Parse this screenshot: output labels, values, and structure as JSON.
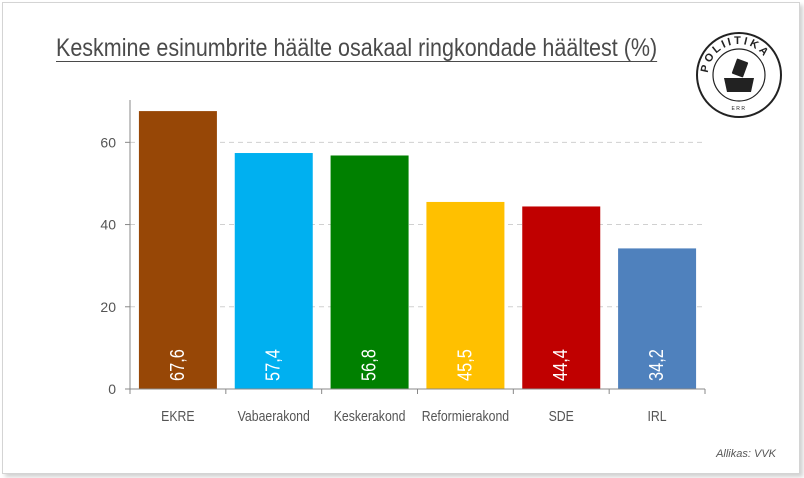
{
  "title": "Keskmine esinumbrite häälte osakaal ringkondade häältest (%)",
  "source": "Allikas: VVK",
  "logo": {
    "text": "POLIITIKA",
    "subtext": "ERR"
  },
  "chart_data": {
    "type": "bar",
    "title": "Keskmine esinumbrite häälte osakaal ringkondade häältest (%)",
    "categories": [
      "EKRE",
      "Vabaerakond",
      "Keskerakond",
      "Reformierakond",
      "SDE",
      "IRL"
    ],
    "values": [
      67.6,
      57.4,
      56.8,
      45.5,
      44.4,
      34.2
    ],
    "value_labels": [
      "67,6",
      "57,4",
      "56,8",
      "45,5",
      "44,4",
      "34,2"
    ],
    "colors": [
      "#974706",
      "#00b0f0",
      "#008000",
      "#ffc000",
      "#c00000",
      "#4f81bd"
    ],
    "y_ticks": [
      0,
      20,
      40,
      60
    ],
    "ylim": [
      0,
      72
    ],
    "grid": true,
    "legend": "none",
    "xlabel": "",
    "ylabel": ""
  }
}
